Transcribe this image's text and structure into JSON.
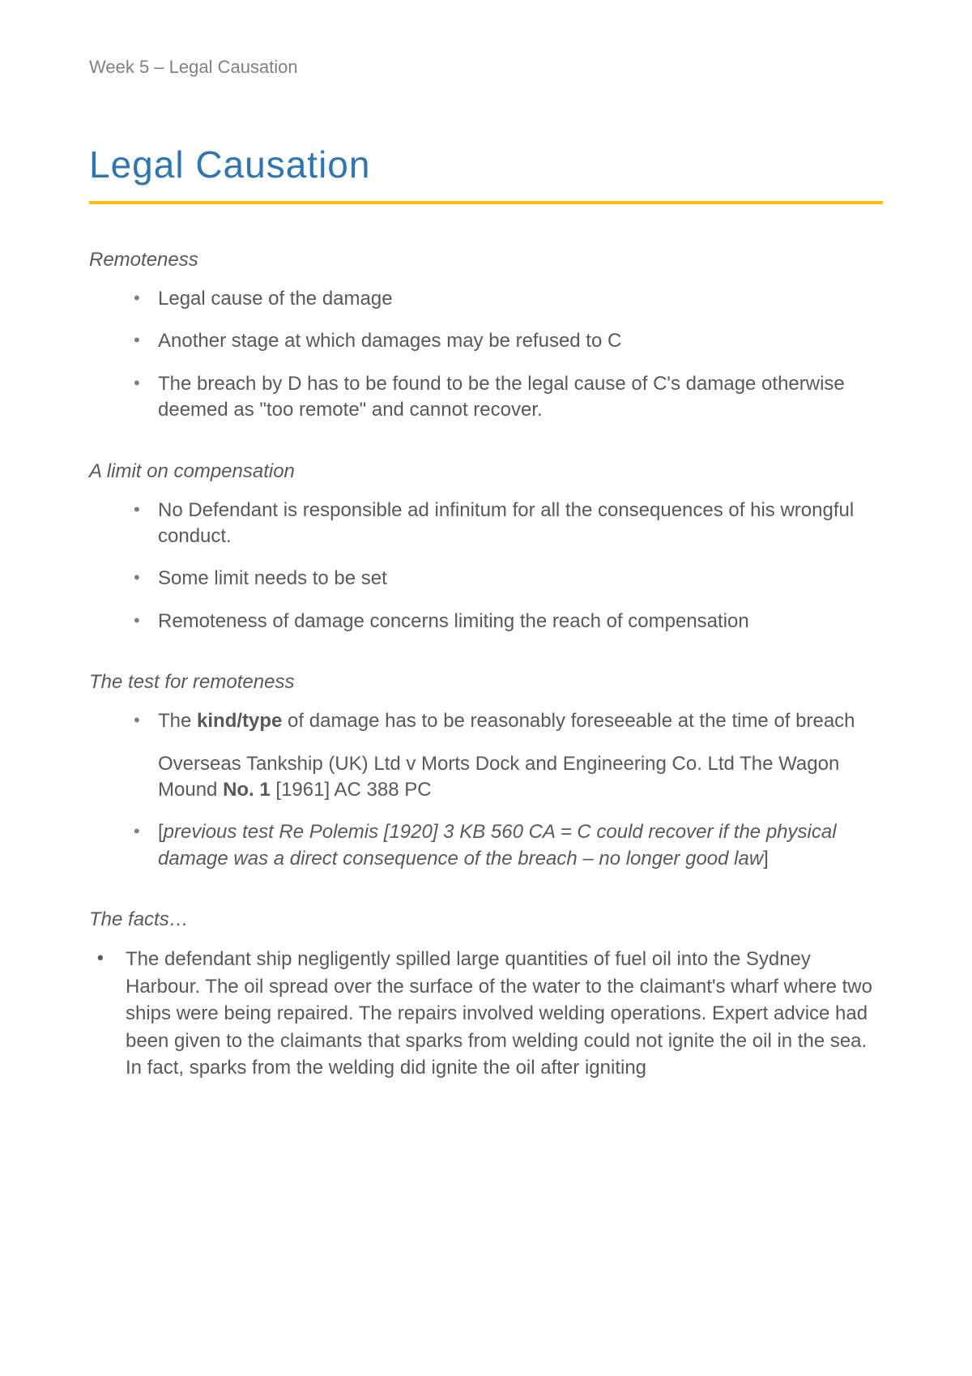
{
  "header": "Week 5 – Legal Causation",
  "title": "Legal Causation",
  "colors": {
    "title": "#2e75b6",
    "rule": "#ffc000",
    "body_text": "#595959",
    "header_text": "#808080",
    "bullet": "#808080",
    "background": "#ffffff"
  },
  "typography": {
    "title_fontsize": 46,
    "section_heading_fontsize": 24,
    "body_fontsize": 24,
    "header_fontsize": 22
  },
  "sections": {
    "remoteness": {
      "heading": "Remoteness",
      "items": [
        "Legal cause of the damage",
        "Another stage at which damages may be refused to C",
        "The breach by D has to be found to be the legal cause of C's damage otherwise deemed as \"too remote\" and cannot recover."
      ]
    },
    "limit": {
      "heading": "A limit on compensation",
      "items": [
        "No Defendant is responsible ad infinitum for all the consequences of his wrongful conduct.",
        "Some limit needs to be set",
        "Remoteness of damage concerns limiting the reach of compensation"
      ]
    },
    "test": {
      "heading": "The test for remoteness",
      "item1_pre": "The ",
      "item1_bold": "kind/type",
      "item1_post": " of damage has to be reasonably foreseeable at the time of breach",
      "case_line1": "Overseas Tankship (UK) Ltd v Morts Dock and Engineering Co. Ltd The Wagon Mound ",
      "case_bold": "No. 1",
      "case_post": " [1961] AC 388 PC",
      "item2_open": "[",
      "item2_italic": "previous test Re Polemis [1920] 3 KB 560 CA = C could recover if the physical damage was a direct consequence of the breach – no longer good law",
      "item2_close": "]"
    },
    "facts": {
      "heading": "The facts…",
      "items": [
        "The defendant ship negligently spilled large quantities of fuel oil into the Sydney Harbour. The oil spread over the surface of the water to the claimant's wharf where two ships were being repaired. The repairs involved welding operations. Expert advice had been given to the claimants that sparks from welding could not ignite the oil in the sea. In fact, sparks from the welding did ignite the oil after igniting"
      ]
    }
  }
}
